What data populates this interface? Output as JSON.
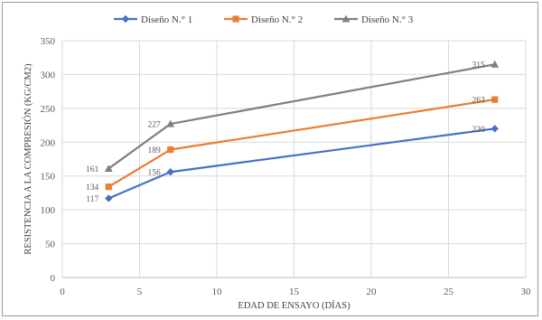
{
  "chart_data": {
    "type": "line",
    "xlabel": "EDAD DE ENSAYO (DÍAS)",
    "ylabel": "RESISTENCIA A LA COMPRESIÓN (KG/CM2)",
    "xlim": [
      0,
      30
    ],
    "ylim": [
      0,
      350
    ],
    "x_ticks": [
      0,
      5,
      10,
      15,
      20,
      25,
      30
    ],
    "y_ticks": [
      0,
      50,
      100,
      150,
      200,
      250,
      300,
      350
    ],
    "grid": true,
    "legend_position": "top",
    "x": [
      3,
      7,
      28
    ],
    "series": [
      {
        "name": "Diseño N.° 1",
        "color": "#4472C4",
        "marker": "diamond",
        "values": [
          117,
          156,
          220
        ],
        "labels": [
          "117",
          "156",
          "220"
        ]
      },
      {
        "name": "Diseño N.° 2",
        "color": "#ED7D31",
        "marker": "square",
        "values": [
          134,
          189,
          263
        ],
        "labels": [
          "134",
          "189",
          "263"
        ]
      },
      {
        "name": "Diseño N.° 3",
        "color": "#7F7F7F",
        "marker": "triangle",
        "values": [
          161,
          227,
          315
        ],
        "labels": [
          "161",
          "227",
          "315"
        ]
      }
    ]
  }
}
